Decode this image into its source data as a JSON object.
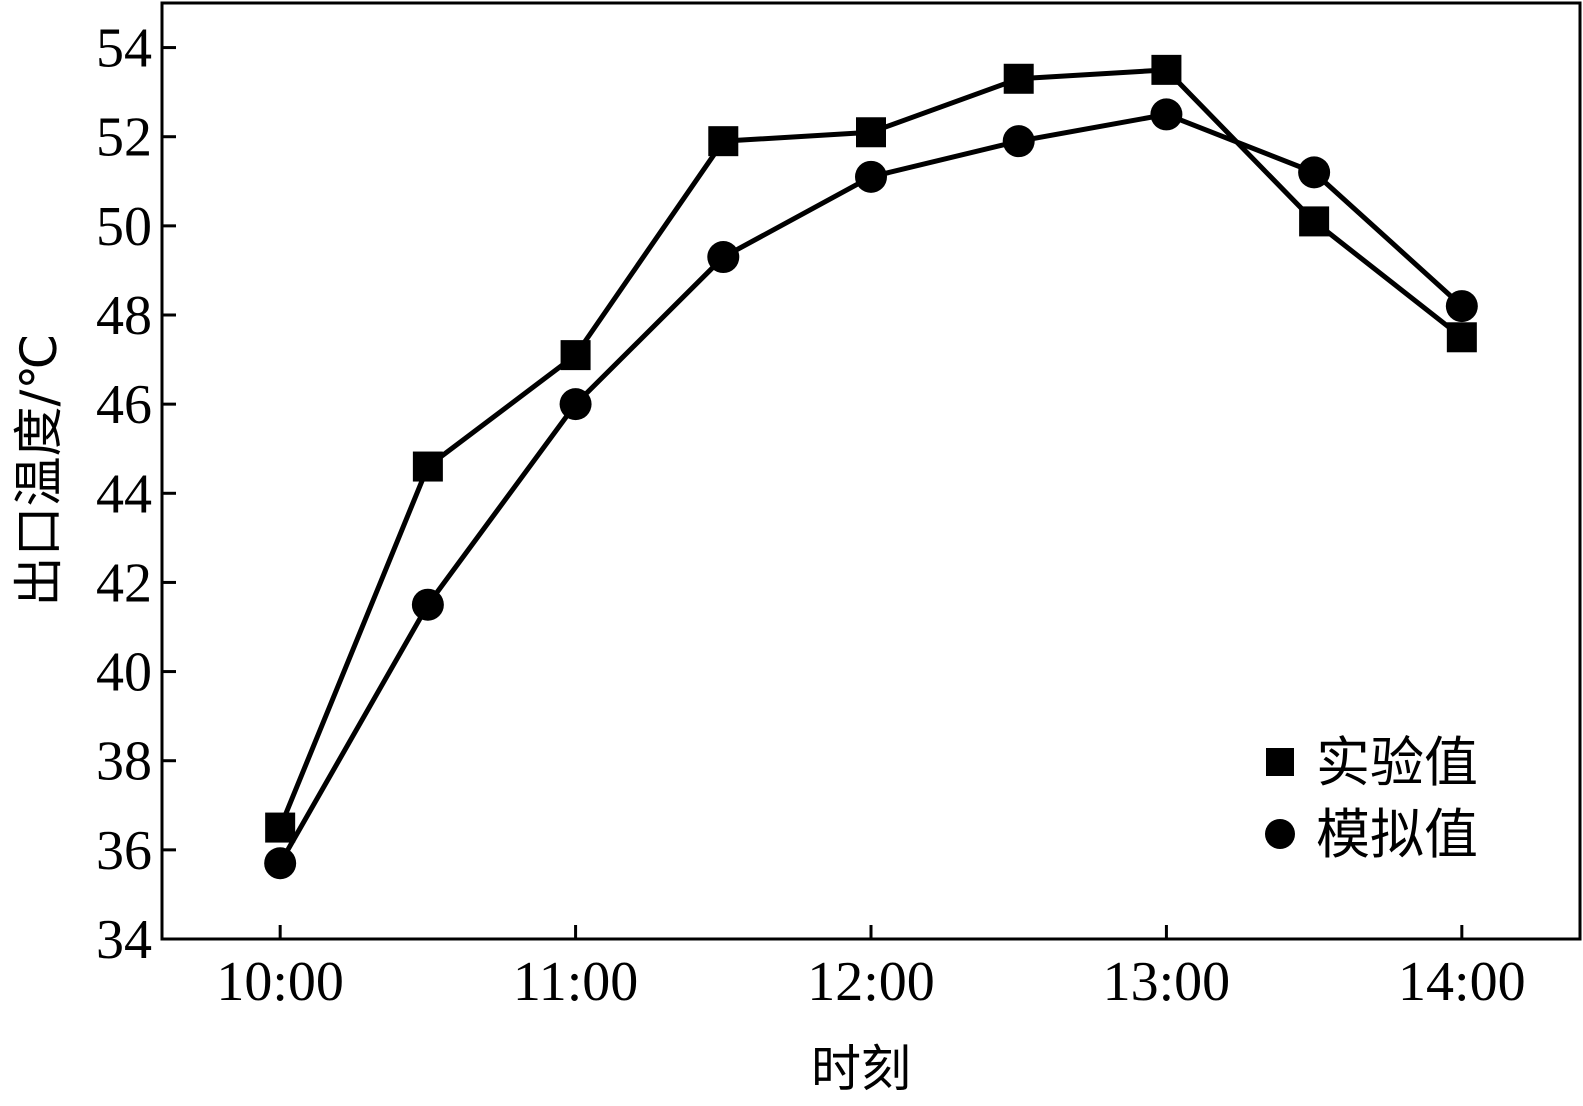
{
  "chart_data": {
    "type": "line",
    "title": "",
    "xlabel": "时刻",
    "ylabel": "出口温度/℃",
    "x_ticks": [
      "10:00",
      "11:00",
      "12:00",
      "13:00",
      "14:00"
    ],
    "x": [
      "10:00",
      "10:30",
      "11:00",
      "11:30",
      "12:00",
      "12:30",
      "13:00",
      "13:30",
      "14:00"
    ],
    "xlim": [
      "09:36",
      "14:24"
    ],
    "y_ticks": [
      34,
      36,
      38,
      40,
      42,
      44,
      46,
      48,
      50,
      52,
      54
    ],
    "ylim": [
      34,
      55
    ],
    "grid": false,
    "legend_position": "bottom-right",
    "series": [
      {
        "name": "实验值",
        "marker": "square",
        "color": "#000000",
        "values": [
          36.5,
          44.6,
          47.1,
          51.9,
          52.1,
          53.3,
          53.5,
          50.1,
          47.5
        ]
      },
      {
        "name": "模拟值",
        "marker": "circle",
        "color": "#000000",
        "values": [
          35.7,
          41.5,
          46.0,
          49.3,
          51.1,
          51.9,
          52.5,
          51.2,
          48.2
        ]
      }
    ]
  }
}
